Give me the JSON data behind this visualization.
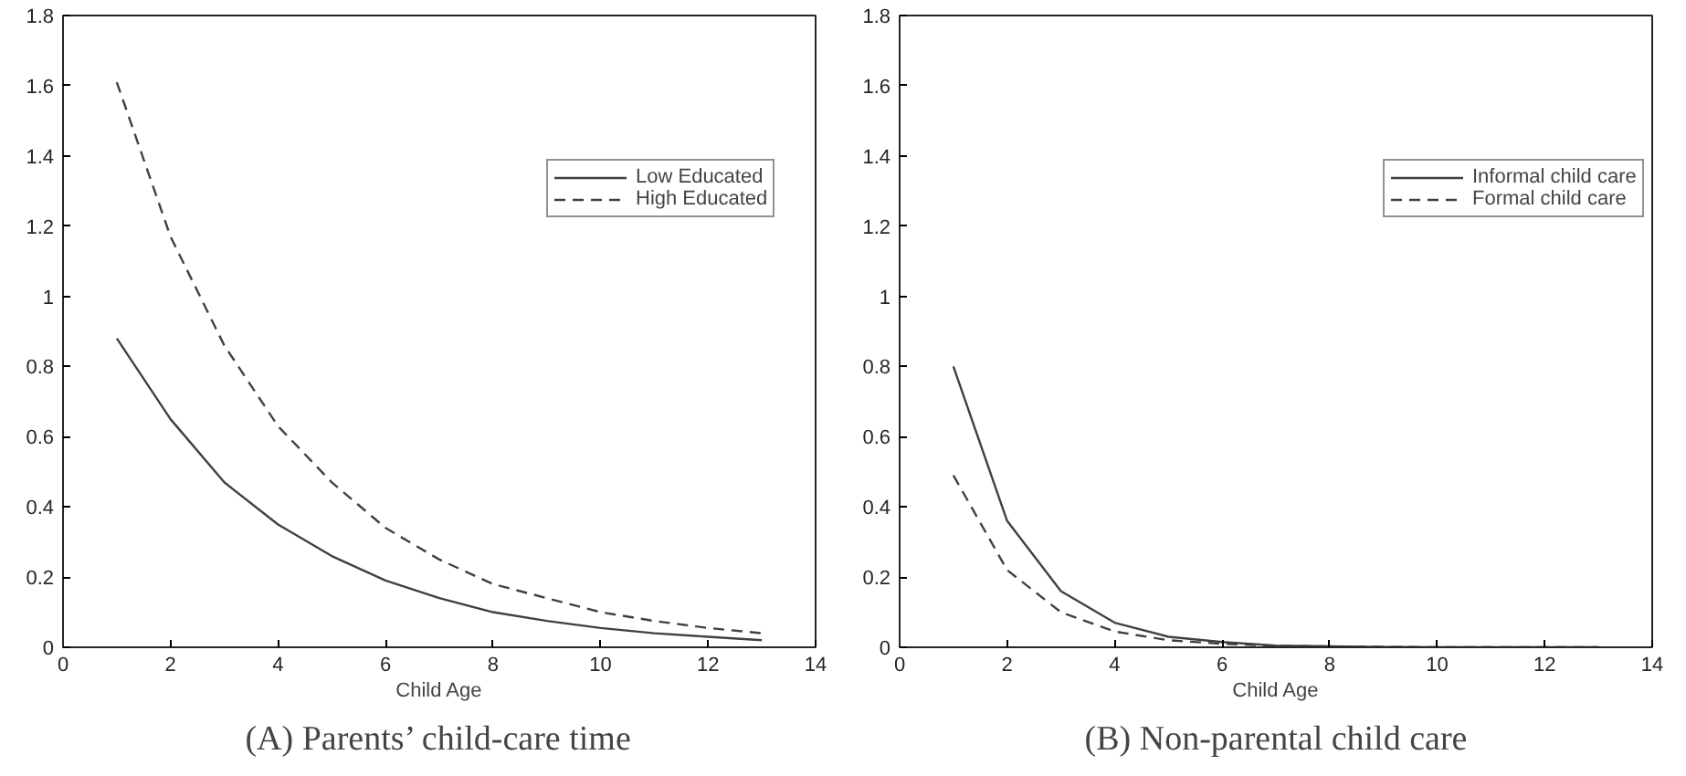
{
  "chart_data": [
    {
      "type": "line",
      "title": "(A) Parents’ child-care time",
      "xlabel": "Child Age",
      "x": [
        1,
        2,
        3,
        4,
        5,
        6,
        7,
        8,
        9,
        10,
        11,
        12,
        13
      ],
      "xlim": [
        0,
        14
      ],
      "xticks": [
        0,
        2,
        4,
        6,
        8,
        10,
        12,
        14
      ],
      "ylim": [
        0,
        1.8
      ],
      "yticks": [
        0,
        0.2,
        0.4,
        0.6,
        0.8,
        1,
        1.2,
        1.4,
        1.6,
        1.8
      ],
      "grid": false,
      "legend": "top right",
      "marker": "none",
      "series": [
        {
          "name": "Low Educated",
          "color": "#404040",
          "line_style": "solid",
          "values": [
            0.88,
            0.65,
            0.47,
            0.35,
            0.26,
            0.19,
            0.14,
            0.1,
            0.075,
            0.055,
            0.04,
            0.03,
            0.02
          ]
        },
        {
          "name": "High Educated",
          "color": "#404040",
          "line_style": "dashed",
          "values": [
            1.61,
            1.17,
            0.86,
            0.63,
            0.47,
            0.34,
            0.25,
            0.18,
            0.14,
            0.1,
            0.075,
            0.055,
            0.04
          ]
        }
      ]
    },
    {
      "type": "line",
      "title": "(B) Non-parental child care",
      "xlabel": "Child Age",
      "x": [
        1,
        2,
        3,
        4,
        5,
        6,
        7,
        8,
        9,
        10,
        11,
        12,
        13
      ],
      "xlim": [
        0,
        14
      ],
      "xticks": [
        0,
        2,
        4,
        6,
        8,
        10,
        12,
        14
      ],
      "ylim": [
        0,
        1.8
      ],
      "yticks": [
        0,
        0.2,
        0.4,
        0.6,
        0.8,
        1,
        1.2,
        1.4,
        1.6,
        1.8
      ],
      "grid": false,
      "legend": "top right",
      "marker": "none",
      "series": [
        {
          "name": "Informal child care",
          "color": "#404040",
          "line_style": "solid",
          "values": [
            0.8,
            0.36,
            0.16,
            0.07,
            0.03,
            0.015,
            0.005,
            0.003,
            0.001,
            0,
            0,
            0,
            0
          ]
        },
        {
          "name": "Formal child care",
          "color": "#404040",
          "line_style": "dashed",
          "values": [
            0.49,
            0.22,
            0.1,
            0.045,
            0.02,
            0.01,
            0.004,
            0.002,
            0.001,
            0,
            0,
            0,
            0
          ]
        }
      ]
    }
  ]
}
